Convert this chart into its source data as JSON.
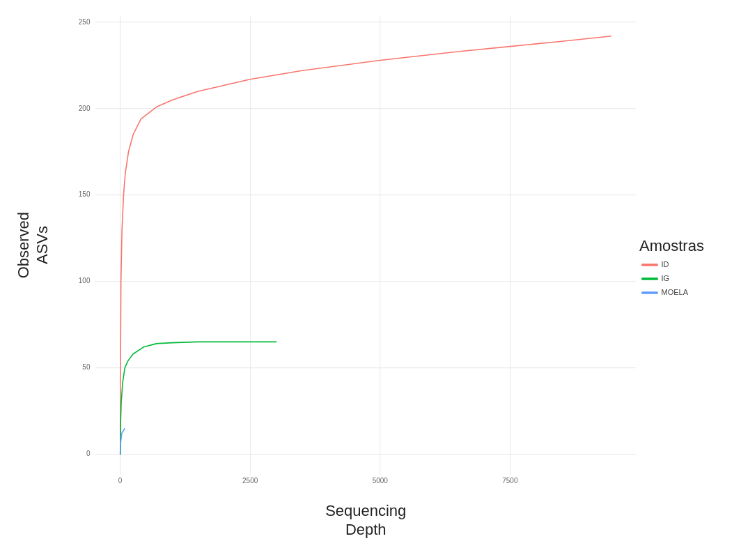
{
  "chart_data": {
    "type": "line",
    "xlabel": "Sequencing\nDepth",
    "ylabel": "Observed\nASVs",
    "legend_title": "Amostras",
    "legend": "right",
    "grid": true,
    "marker": "none",
    "line_style": "solid",
    "xlim": [
      -470,
      9920
    ],
    "xticks": [
      0,
      2500,
      5000,
      7500
    ],
    "ylim": [
      -12,
      254
    ],
    "yticks": [
      0,
      50,
      100,
      150,
      200,
      250
    ],
    "series": [
      {
        "name": "ID",
        "color": "#F8766D",
        "x": [
          0,
          5,
          15,
          35,
          65,
          100,
          160,
          250,
          400,
          700,
          1000,
          1500,
          2500,
          3500,
          5000,
          6500,
          7500,
          8500,
          9450
        ],
        "values": [
          0,
          40,
          100,
          130,
          150,
          163,
          175,
          185,
          194,
          201,
          205,
          210,
          217,
          222,
          228,
          233,
          236,
          239,
          242
        ]
      },
      {
        "name": "IG",
        "color": "#00BA38",
        "x": [
          0,
          5,
          20,
          50,
          90,
          150,
          250,
          450,
          700,
          1000,
          1500,
          2000,
          3010
        ],
        "values": [
          0,
          15,
          30,
          42,
          50,
          54,
          58,
          62,
          64,
          64.5,
          65,
          65,
          65
        ]
      },
      {
        "name": "MOELA",
        "color": "#619CFF",
        "x": [
          0,
          10,
          30,
          90
        ],
        "values": [
          0,
          7,
          12,
          15
        ]
      }
    ]
  }
}
